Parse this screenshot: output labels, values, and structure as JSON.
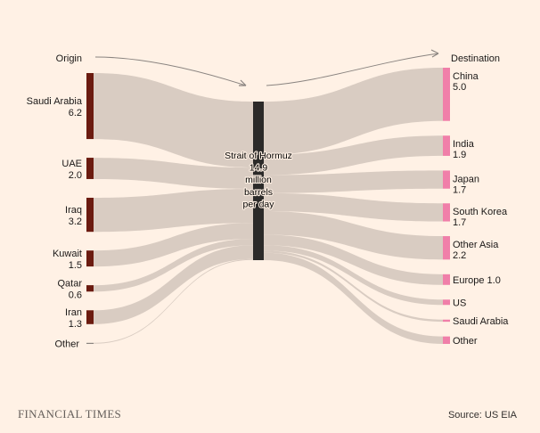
{
  "header": {
    "origin_label": "Origin",
    "destination_label": "Destination"
  },
  "hub": {
    "lines": [
      "Strait of Hormuz",
      "14.9",
      "million",
      "barrels",
      "per day"
    ],
    "value": 14.9,
    "color": "#2b2a29"
  },
  "sources": [
    {
      "name": "Saudi Arabia",
      "value_label": "6.2",
      "value": 6.2
    },
    {
      "name": "UAE",
      "value_label": "2.0",
      "value": 2.0
    },
    {
      "name": "Iraq",
      "value_label": "3.2",
      "value": 3.2
    },
    {
      "name": "Kuwait",
      "value_label": "1.5",
      "value": 1.5
    },
    {
      "name": "Qatar",
      "value_label": "0.6",
      "value": 0.6
    },
    {
      "name": "Iran",
      "value_label": "1.3",
      "value": 1.3
    },
    {
      "name": "Other",
      "value_label": "",
      "value": 0.05
    }
  ],
  "destinations": [
    {
      "name": "China",
      "value_label": "5.0",
      "value": 5.0
    },
    {
      "name": "India",
      "value_label": "1.9",
      "value": 1.9
    },
    {
      "name": "Japan",
      "value_label": "1.7",
      "value": 1.7
    },
    {
      "name": "South Korea",
      "value_label": "1.7",
      "value": 1.7
    },
    {
      "name": "Other Asia",
      "value_label": "2.2",
      "value": 2.2
    },
    {
      "name": "Europe",
      "value_label": "1.0",
      "value": 1.0
    },
    {
      "name": "US",
      "value_label": "",
      "value": 0.5
    },
    {
      "name": "Saudi Arabia",
      "value_label": "",
      "value": 0.2
    },
    {
      "name": "Other",
      "value_label": "",
      "value": 0.7
    }
  ],
  "colors": {
    "source_node": "#6b1b10",
    "destination_node": "#f07fa9",
    "flow": "#d9ccc2",
    "arrow": "#8a8480",
    "background": "#fff1e5"
  },
  "footer": {
    "brand": "FINANCIAL TIMES",
    "source": "Source: US EIA"
  }
}
